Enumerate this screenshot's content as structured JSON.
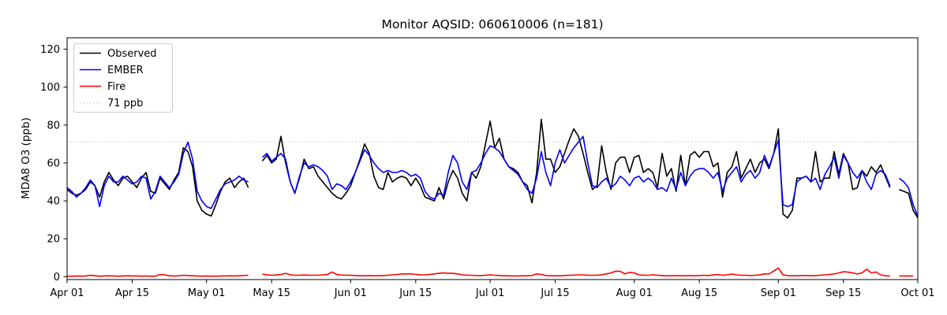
{
  "chart_data": {
    "type": "line",
    "title": "Monitor AQSID: 060610006 (n=181)",
    "ylabel": "MDA8 O3 (ppb)",
    "xlabel": "",
    "ylim": [
      -1.5,
      126
    ],
    "yticks": [
      0,
      20,
      40,
      60,
      80,
      100,
      120
    ],
    "xticks": [
      "Apr 01",
      "Apr 15",
      "May 01",
      "May 15",
      "Jun 01",
      "Jun 15",
      "Jul 01",
      "Jul 15",
      "Aug 01",
      "Aug 15",
      "Sep 01",
      "Sep 15",
      "Oct 01"
    ],
    "xtick_day_index": [
      0,
      14,
      30,
      44,
      61,
      75,
      91,
      105,
      122,
      136,
      153,
      167,
      183
    ],
    "x_range_days": [
      0,
      183
    ],
    "grid": false,
    "legend_position": "upper left",
    "ref_line": {
      "value": 71,
      "label": "71 ppb",
      "color": "#d0d0d0",
      "style": "dotted"
    },
    "series": [
      {
        "name": "Observed",
        "color": "#000000",
        "values": [
          46,
          44,
          43,
          44,
          46,
          50,
          48,
          42,
          50,
          55,
          51,
          48,
          52,
          53,
          50,
          47,
          52,
          55,
          45,
          44,
          52,
          49,
          46,
          51,
          55,
          68,
          66,
          58,
          40,
          35,
          33,
          32,
          38,
          45,
          50,
          52,
          47,
          50,
          52,
          47,
          null,
          null,
          61,
          64,
          60,
          62,
          74,
          60,
          50,
          44,
          52,
          62,
          57,
          58,
          53,
          50,
          47,
          44,
          42,
          41,
          44,
          48,
          55,
          62,
          70,
          65,
          53,
          47,
          46,
          55,
          50,
          52,
          53,
          52,
          48,
          52,
          48,
          42,
          41,
          40,
          47,
          41,
          50,
          56,
          52,
          44,
          40,
          55,
          52,
          58,
          70,
          82,
          68,
          73,
          62,
          58,
          57,
          55,
          50,
          48,
          39,
          55,
          83,
          62,
          62,
          55,
          58,
          65,
          72,
          78,
          74,
          65,
          55,
          46,
          48,
          69,
          55,
          46,
          60,
          63,
          63,
          55,
          63,
          64,
          55,
          57,
          55,
          47,
          65,
          53,
          57,
          45,
          64,
          48,
          64,
          66,
          63,
          66,
          66,
          58,
          60,
          42,
          55,
          58,
          66,
          52,
          57,
          62,
          55,
          60,
          62,
          57,
          65,
          78,
          33,
          31,
          35,
          52,
          52,
          53,
          50,
          66,
          50,
          52,
          52,
          66,
          54,
          65,
          60,
          46,
          47,
          56,
          53,
          58,
          55,
          59,
          53,
          47,
          null,
          46,
          45,
          44,
          35,
          31
        ]
      },
      {
        "name": "EMBER",
        "color": "#0000ff",
        "values": [
          47,
          45,
          42,
          44,
          47,
          51,
          48,
          37,
          48,
          53,
          50,
          50,
          53,
          51,
          49,
          50,
          53,
          52,
          41,
          45,
          53,
          50,
          47,
          50,
          54,
          65,
          71,
          62,
          45,
          40,
          37,
          36,
          41,
          46,
          49,
          50,
          51,
          53,
          51,
          50,
          null,
          null,
          63,
          65,
          61,
          63,
          65,
          62,
          50,
          44,
          53,
          60,
          58,
          59,
          58,
          56,
          53,
          46,
          49,
          48,
          46,
          50,
          55,
          61,
          67,
          64,
          60,
          57,
          55,
          56,
          55,
          55,
          56,
          55,
          53,
          54,
          52,
          45,
          42,
          41,
          44,
          43,
          55,
          64,
          60,
          50,
          46,
          55,
          56,
          60,
          65,
          69,
          68,
          66,
          62,
          58,
          56,
          54,
          50,
          46,
          44,
          52,
          66,
          55,
          48,
          60,
          67,
          60,
          64,
          68,
          71,
          74,
          60,
          48,
          47,
          50,
          52,
          47,
          49,
          53,
          51,
          48,
          52,
          53,
          50,
          52,
          50,
          46,
          47,
          45,
          52,
          46,
          55,
          48,
          53,
          56,
          57,
          57,
          55,
          52,
          55,
          45,
          52,
          55,
          58,
          50,
          54,
          56,
          52,
          55,
          64,
          58,
          65,
          72,
          38,
          37,
          38,
          50,
          52,
          53,
          50,
          52,
          46,
          54,
          58,
          63,
          52,
          64,
          60,
          55,
          52,
          56,
          50,
          46,
          54,
          56,
          54,
          48,
          null,
          52,
          50,
          47,
          38,
          32
        ]
      },
      {
        "name": "Fire",
        "color": "#ff0000",
        "values": [
          0.3,
          0.3,
          0.4,
          0.3,
          0.4,
          0.8,
          0.5,
          0.3,
          0.4,
          0.5,
          0.4,
          0.3,
          0.4,
          0.5,
          0.4,
          0.4,
          0.3,
          0.4,
          0.3,
          0.3,
          1.2,
          1.0,
          0.5,
          0.4,
          0.5,
          0.8,
          0.6,
          0.5,
          0.4,
          0.3,
          0.4,
          0.3,
          0.3,
          0.4,
          0.4,
          0.5,
          0.4,
          0.5,
          0.6,
          0.8,
          null,
          null,
          1.4,
          1.0,
          0.8,
          0.9,
          1.2,
          1.8,
          1.0,
          0.8,
          0.8,
          0.9,
          0.8,
          0.8,
          0.8,
          1.0,
          1.2,
          2.5,
          1.2,
          0.9,
          0.8,
          0.8,
          0.6,
          0.5,
          0.5,
          0.6,
          0.5,
          0.5,
          0.6,
          0.8,
          1.0,
          1.2,
          1.5,
          1.5,
          1.5,
          1.2,
          1.0,
          1.0,
          1.2,
          1.5,
          1.8,
          2.0,
          1.8,
          1.8,
          1.5,
          1.0,
          0.8,
          0.8,
          0.6,
          0.6,
          0.8,
          1.0,
          0.8,
          0.6,
          0.5,
          0.5,
          0.4,
          0.4,
          0.5,
          0.5,
          0.6,
          1.5,
          1.2,
          0.6,
          0.5,
          0.5,
          0.5,
          0.6,
          0.8,
          0.8,
          1.0,
          1.0,
          0.8,
          0.8,
          0.8,
          1.0,
          1.5,
          2.0,
          2.9,
          2.8,
          1.5,
          2.3,
          2.0,
          1.0,
          0.8,
          0.8,
          1.0,
          0.8,
          0.6,
          0.5,
          0.5,
          0.6,
          0.5,
          0.5,
          0.6,
          0.5,
          0.6,
          0.8,
          0.6,
          1.0,
          1.2,
          0.8,
          1.0,
          1.4,
          1.0,
          0.8,
          0.8,
          0.6,
          0.8,
          1.0,
          1.5,
          1.5,
          3.0,
          4.6,
          1.0,
          0.6,
          0.5,
          0.5,
          0.6,
          0.6,
          0.5,
          0.6,
          0.8,
          1.0,
          1.2,
          1.5,
          2.0,
          2.6,
          2.4,
          2.0,
          1.5,
          2.0,
          4.0,
          2.0,
          2.5,
          1.0,
          0.5,
          0.4,
          null,
          0.4,
          0.4,
          0.4,
          0.4,
          null
        ]
      }
    ]
  }
}
